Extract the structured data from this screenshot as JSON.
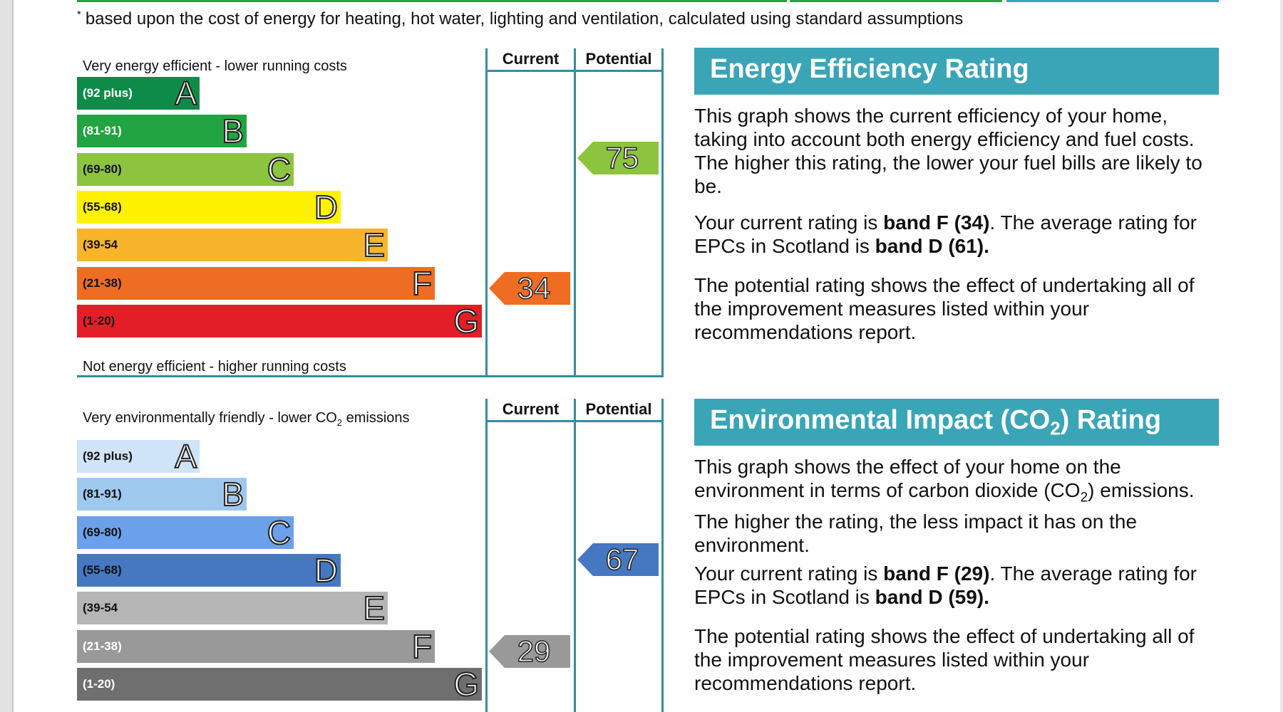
{
  "footnote": {
    "mark": "*",
    "text": "based upon the cost of energy for heating, hot water, lighting and ventilation, calculated using standard assumptions"
  },
  "colors": {
    "frame": "#2f8fa3",
    "panel_title_bg": "#3aa5b7"
  },
  "energy_chart": {
    "col_current": "Current",
    "col_potential": "Potential",
    "top_label": "Very energy efficient - lower running costs",
    "bottom_label": "Not energy efficient - higher running costs",
    "bands": [
      {
        "range": "(92 plus)",
        "letter": "A",
        "color": "#0e8b48",
        "text_color": "#ffffff"
      },
      {
        "range": "(81-91)",
        "letter": "B",
        "color": "#21a441",
        "text_color": "#ffffff"
      },
      {
        "range": "(69-80)",
        "letter": "C",
        "color": "#8cc43f",
        "text_color": "#111111"
      },
      {
        "range": "(55-68)",
        "letter": "D",
        "color": "#fff200",
        "text_color": "#111111"
      },
      {
        "range": "(39-54",
        "letter": "E",
        "color": "#f8b42a",
        "text_color": "#111111"
      },
      {
        "range": "(21-38)",
        "letter": "F",
        "color": "#ef6d22",
        "text_color": "#111111"
      },
      {
        "range": "(1-20)",
        "letter": "G",
        "color": "#e31e26",
        "text_color": "#111111"
      }
    ],
    "current": {
      "value": "34",
      "color": "#ef6d22"
    },
    "potential": {
      "value": "75",
      "color": "#8cc43f"
    }
  },
  "co2_chart": {
    "col_current": "Current",
    "col_potential": "Potential",
    "top_label_pre": "Very environmentally friendly - lower CO",
    "top_label_sub": "2",
    "top_label_post": " emissions",
    "bands": [
      {
        "range": "(92 plus)",
        "letter": "A",
        "color": "#cfe4f7",
        "text_color": "#111111"
      },
      {
        "range": "(81-91)",
        "letter": "B",
        "color": "#9fc8ef",
        "text_color": "#111111"
      },
      {
        "range": "(69-80)",
        "letter": "C",
        "color": "#6ba0ea",
        "text_color": "#111111"
      },
      {
        "range": "(55-68)",
        "letter": "D",
        "color": "#4578c1",
        "text_color": "#111111"
      },
      {
        "range": "(39-54",
        "letter": "E",
        "color": "#b5b5b5",
        "text_color": "#111111"
      },
      {
        "range": "(21-38)",
        "letter": "F",
        "color": "#999999",
        "text_color": "#ffffff"
      },
      {
        "range": "(1-20)",
        "letter": "G",
        "color": "#6f6f6f",
        "text_color": "#ffffff"
      }
    ],
    "current": {
      "value": "29",
      "color": "#999999"
    },
    "potential": {
      "value": "67",
      "color": "#4578c1"
    }
  },
  "energy_panel": {
    "title": "Energy Efficiency Rating",
    "p1": "This graph shows the current efficiency of your home, taking into account both energy efficiency and fuel costs. The higher this rating, the lower your fuel bills are likely to be.",
    "p2_a": "Your current rating is ",
    "p2_b": "band F (34)",
    "p2_c": ". The average rating for EPCs in Scotland is ",
    "p2_d": "band D (61).",
    "p3": "The potential rating shows the effect of undertaking all of the improvement measures listed within your recommendations report."
  },
  "co2_panel": {
    "title_pre": "Environmental Impact (CO",
    "title_sub": "2",
    "title_post": ") Rating",
    "p1_pre": "This graph shows the effect of your home on the environment in terms of carbon dioxide (CO",
    "p1_sub": "2",
    "p1_post": ") emissions. The higher the rating, the less impact it has on the environment.",
    "p2_a": "Your current rating is ",
    "p2_b": "band F (29)",
    "p2_c": ". The average rating for EPCs in Scotland is ",
    "p2_d": "band D (59).",
    "p3": "The potential rating shows the effect of undertaking all of the improvement measures listed within your recommendations report."
  }
}
